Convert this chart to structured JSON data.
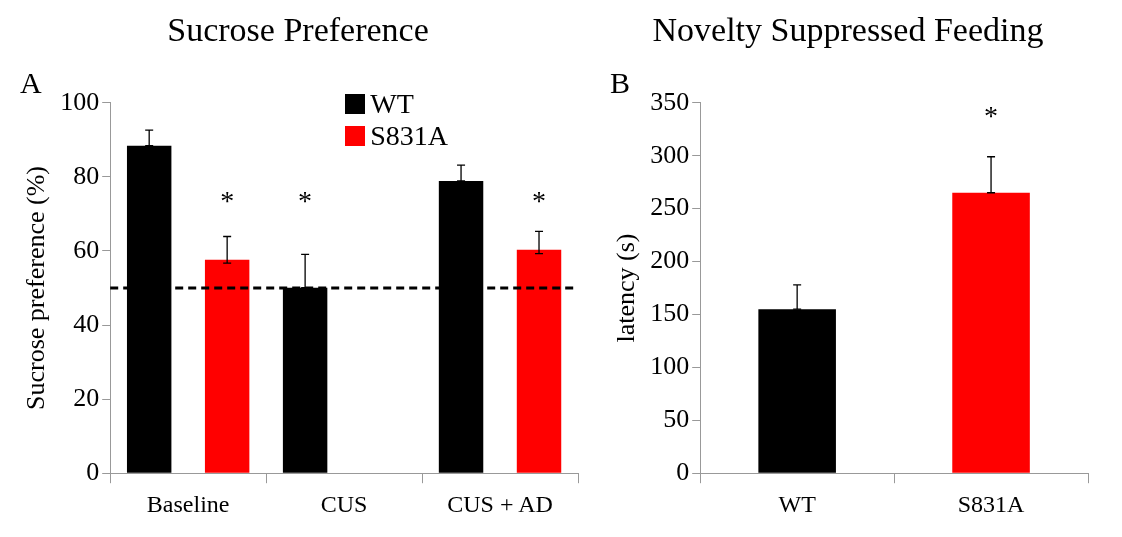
{
  "chart_data": [
    {
      "type": "bar",
      "title": "Sucrose Preference",
      "ylabel": "Sucrose preference (%)",
      "categories": [
        "Baseline",
        "CUS",
        "CUS + AD"
      ],
      "series": [
        {
          "name": "WT",
          "color": "#000000",
          "values": [
            88.4,
            50.1,
            78.9
          ],
          "errors": [
            [
              88.4,
              92.6
            ],
            [
              50.1,
              59.1
            ],
            [
              78.9,
              83.2
            ]
          ]
        },
        {
          "name": "S831A",
          "color": "#ff0000",
          "values": [
            57.6,
            null,
            60.3
          ],
          "errors": [
            [
              56.7,
              63.9
            ],
            null,
            [
              59.3,
              65.3
            ]
          ]
        }
      ],
      "ylim": [
        0,
        100
      ],
      "yticks": [
        0,
        20,
        40,
        60,
        80,
        100
      ],
      "grid": false,
      "legend": "top right",
      "ref_lines": [
        {
          "axis": "y",
          "value": 50,
          "color": "#000000",
          "line_style": "dashed"
        }
      ],
      "annotations": [
        "A",
        "*",
        "*",
        "*"
      ]
    },
    {
      "type": "bar",
      "title": "Novelty Suppressed Feeding",
      "ylabel": "latency (s)",
      "categories": [
        "WT",
        "S831A"
      ],
      "values": [
        155,
        265
      ],
      "colors": [
        "#000000",
        "#ff0000"
      ],
      "errors": [
        [
          155,
          178
        ],
        [
          265,
          299
        ]
      ],
      "ylim": [
        0,
        350
      ],
      "yticks": [
        0,
        50,
        100,
        150,
        200,
        250,
        300,
        350
      ],
      "grid": false,
      "annotations": [
        "B",
        "*"
      ]
    }
  ]
}
